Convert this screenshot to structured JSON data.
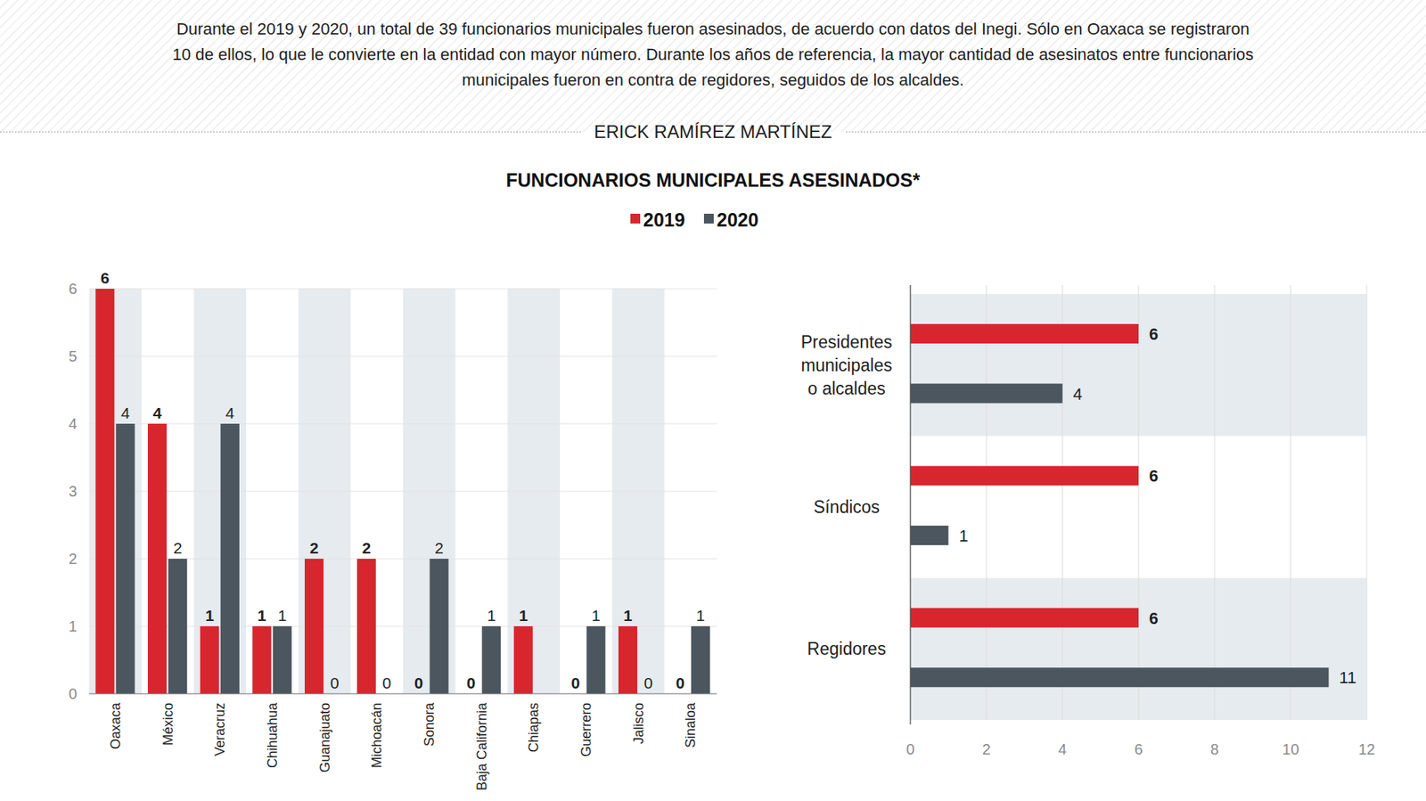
{
  "header": {
    "intro": "Durante el 2019 y 2020, un total de 39 funcionarios municipales fueron asesinados, de acuerdo con datos del Inegi. Sólo en Oaxaca se registraron 10 de ellos, lo que le convierte en la entidad con mayor número. Durante los años de referencia, la mayor cantidad de asesinatos entre funcionarios municipales fueron en contra de regidores, seguidos de los alcaldes.",
    "author": "ERICK RAMÍREZ MARTÍNEZ",
    "title": "FUNCIONARIOS MUNICIPALES ASESINADOS*"
  },
  "chart_data": [
    {
      "type": "bar",
      "categories": [
        "Oaxaca",
        "México",
        "Veracruz",
        "Chihuahua",
        "Guanajuato",
        "Michoacán",
        "Sonora",
        "Baja California",
        "Chiapas",
        "Guerrero",
        "Jalisco",
        "Sinaloa"
      ],
      "series": [
        {
          "name": "2019",
          "color": "#d7262e",
          "values": [
            6,
            4,
            1,
            1,
            2,
            2,
            0,
            0,
            1,
            0,
            1,
            0
          ]
        },
        {
          "name": "2020",
          "color": "#4b565e",
          "values": [
            4,
            2,
            4,
            1,
            0,
            0,
            2,
            1,
            null,
            1,
            0,
            1
          ]
        }
      ],
      "ylim": [
        0,
        6
      ],
      "yticks": [
        0,
        1,
        2,
        3,
        4,
        5,
        6
      ],
      "grid": true,
      "data_labels": true,
      "legend": "top"
    },
    {
      "type": "bar",
      "orientation": "horizontal",
      "categories": [
        "Presidentes municipales o alcaldes",
        "Síndicos",
        "Regidores"
      ],
      "series": [
        {
          "color": "#d7262e",
          "values": [
            6,
            6,
            6
          ]
        },
        {
          "color": "#4b565e",
          "values": [
            4,
            1,
            11
          ]
        }
      ],
      "xlim": [
        0,
        12
      ],
      "xticks": [
        0,
        2,
        4,
        6,
        8,
        10,
        12
      ],
      "grid": true,
      "data_labels": true
    }
  ]
}
